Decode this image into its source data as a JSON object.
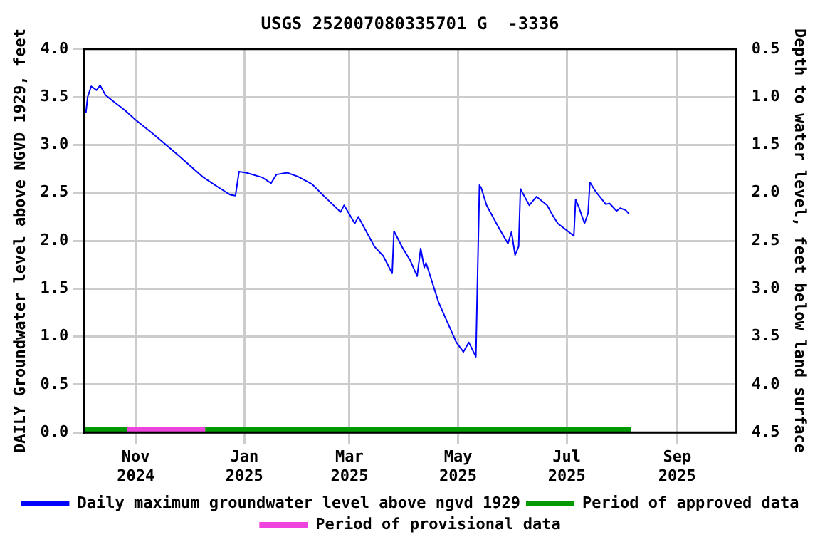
{
  "chart_data": {
    "type": "line",
    "title": "USGS 252007080335701 G  -3336",
    "ylabel": "DAILY Groundwater level above NGVD 1929, feet",
    "y2label": "Depth to water level, feet below land surface",
    "x": [
      "2024-10-04",
      "2024-10-05",
      "2024-10-07",
      "2024-10-10",
      "2024-10-12",
      "2024-10-15",
      "2024-10-19",
      "2024-10-26",
      "2024-11-01",
      "2024-11-11",
      "2024-11-25",
      "2024-12-09",
      "2024-12-18",
      "2024-12-24",
      "2024-12-27",
      "2024-12-29",
      "2025-01-02",
      "2025-01-11",
      "2025-01-16",
      "2025-01-19",
      "2025-01-25",
      "2025-01-31",
      "2025-02-08",
      "2025-02-15",
      "2025-02-24",
      "2025-02-26",
      "2025-03-04",
      "2025-03-06",
      "2025-03-15",
      "2025-03-20",
      "2025-03-25",
      "2025-03-26",
      "2025-03-31",
      "2025-04-04",
      "2025-04-08",
      "2025-04-10",
      "2025-04-12",
      "2025-04-13",
      "2025-04-20",
      "2025-04-25",
      "2025-04-30",
      "2025-05-04",
      "2025-05-07",
      "2025-05-11",
      "2025-05-12",
      "2025-05-13",
      "2025-05-14",
      "2025-05-17",
      "2025-05-24",
      "2025-05-29",
      "2025-05-31",
      "2025-06-02",
      "2025-06-04",
      "2025-06-05",
      "2025-06-10",
      "2025-06-14",
      "2025-06-20",
      "2025-06-23",
      "2025-06-26",
      "2025-07-05",
      "2025-07-06",
      "2025-07-08",
      "2025-07-11",
      "2025-07-13",
      "2025-07-14",
      "2025-07-17",
      "2025-07-23",
      "2025-07-25",
      "2025-07-29",
      "2025-07-31",
      "2025-08-03",
      "2025-08-05"
    ],
    "series": [
      {
        "name": "Daily maximum groundwater level above ngvd 1929",
        "color": "#0000ff",
        "values": [
          3.33,
          3.5,
          3.61,
          3.57,
          3.62,
          3.52,
          3.46,
          3.36,
          3.26,
          3.11,
          2.89,
          2.66,
          2.55,
          2.48,
          2.47,
          2.72,
          2.71,
          2.66,
          2.6,
          2.69,
          2.71,
          2.67,
          2.59,
          2.46,
          2.3,
          2.37,
          2.18,
          2.25,
          1.94,
          1.84,
          1.66,
          2.1,
          1.92,
          1.8,
          1.63,
          1.92,
          1.72,
          1.77,
          1.36,
          1.15,
          0.94,
          0.84,
          0.94,
          0.79,
          1.69,
          2.58,
          2.55,
          2.37,
          2.13,
          1.97,
          2.09,
          1.85,
          1.94,
          2.54,
          2.37,
          2.46,
          2.37,
          2.27,
          2.18,
          2.05,
          2.43,
          2.34,
          2.18,
          2.29,
          2.61,
          2.52,
          2.38,
          2.39,
          2.31,
          2.34,
          2.32,
          2.28
        ]
      },
      {
        "name": "Period of approved data",
        "color": "#009900",
        "x": [
          "2024-10-03",
          "2024-10-27",
          "2024-11-15",
          "2024-12-10",
          "2025-08-06"
        ],
        "values": [
          0.02,
          0.02,
          null,
          0.02,
          0.02
        ]
      },
      {
        "name": "Period of provisional data",
        "color": "#ee44dd",
        "x": [
          "2024-10-27",
          "2024-12-10"
        ],
        "values": [
          0.02,
          0.02
        ]
      }
    ],
    "xlim": [
      "2024-10-03",
      "2025-10-04"
    ],
    "xticks": [
      {
        "value": "2024-11-01",
        "label": "Nov 2024"
      },
      {
        "value": "2025-01-01",
        "label": "Jan 2025"
      },
      {
        "value": "2025-03-01",
        "label": "Mar 2025"
      },
      {
        "value": "2025-05-01",
        "label": "May 2025"
      },
      {
        "value": "2025-07-01",
        "label": "Jul 2025"
      },
      {
        "value": "2025-09-01",
        "label": "Sep 2025"
      }
    ],
    "ylim": [
      0,
      4
    ],
    "yticks": [
      {
        "value": 0,
        "label": "0.0"
      },
      {
        "value": 0.5,
        "label": "0.5"
      },
      {
        "value": 1,
        "label": "1.0"
      },
      {
        "value": 1.5,
        "label": "1.5"
      },
      {
        "value": 2,
        "label": "2.0"
      },
      {
        "value": 2.5,
        "label": "2.5"
      },
      {
        "value": 3,
        "label": "3.0"
      },
      {
        "value": 3.5,
        "label": "3.5"
      },
      {
        "value": 4,
        "label": "4.0"
      }
    ],
    "y2lim": [
      4.5,
      0.5
    ],
    "y2ticks": [
      {
        "value": 0.5,
        "label": "0.5"
      },
      {
        "value": 1,
        "label": "1.0"
      },
      {
        "value": 1.5,
        "label": "1.5"
      },
      {
        "value": 2,
        "label": "2.0"
      },
      {
        "value": 2.5,
        "label": "2.5"
      },
      {
        "value": 3,
        "label": "3.0"
      },
      {
        "value": 3.5,
        "label": "3.5"
      },
      {
        "value": 4,
        "label": "4.0"
      },
      {
        "value": 4.5,
        "label": "4.5"
      }
    ],
    "grid": true,
    "legend": "bottom",
    "marker": "none",
    "line_style": "solid"
  }
}
